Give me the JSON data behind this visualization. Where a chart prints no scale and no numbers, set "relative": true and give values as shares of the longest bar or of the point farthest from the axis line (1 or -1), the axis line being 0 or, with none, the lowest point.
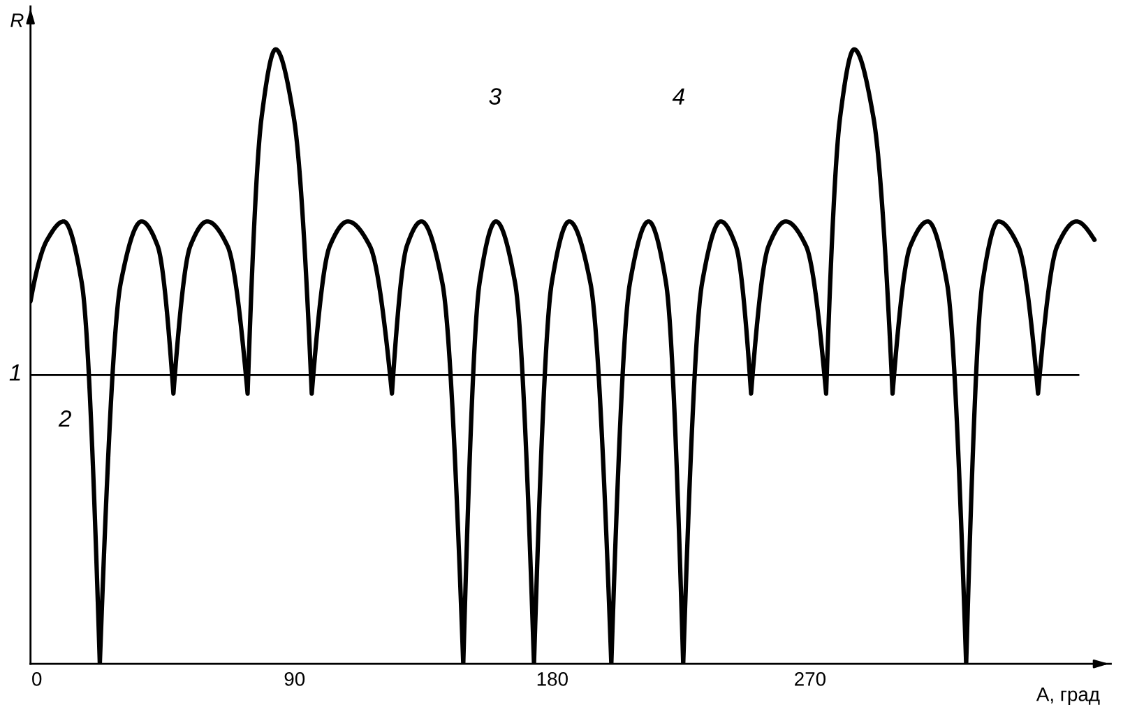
{
  "chart_data": {
    "type": "line",
    "relative": true,
    "xlabel": "A, град",
    "ylabel": "R",
    "xlim": [
      -2.2,
      375
    ],
    "xticks": [
      0,
      90,
      180,
      270
    ],
    "grid": false,
    "marker": "none",
    "line_style": "solid",
    "x": [
      -2.2,
      3.6,
      9.4,
      15.7,
      22.0,
      29.3,
      36.6,
      42.2,
      47.7,
      53.6,
      59.5,
      66.6,
      73.6,
      78.5,
      83.4,
      89.7,
      96.0,
      102.3,
      108.6,
      116.3,
      124.0,
      129.2,
      134.3,
      141.6,
      148.9,
      154.6,
      160.3,
      167.0,
      173.6,
      179.8,
      185.9,
      193.3,
      200.6,
      207.1,
      213.6,
      219.7,
      225.7,
      232.3,
      238.8,
      244.1,
      249.4,
      255.5,
      261.5,
      268.6,
      275.6,
      280.5,
      285.4,
      292.1,
      298.8,
      305.0,
      311.1,
      317.8,
      324.5,
      330.2,
      335.8,
      342.7,
      349.6,
      356.3,
      363.0,
      369.3
    ],
    "series": [
      {
        "color": "#000000",
        "values": [
          0.59,
          0.69,
          0.72,
          0.62,
          0,
          0.62,
          0.72,
          0.68,
          0.44,
          0.68,
          0.72,
          0.68,
          0.44,
          0.89,
          1.0,
          0.89,
          0.44,
          0.68,
          0.72,
          0.68,
          0.44,
          0.68,
          0.72,
          0.62,
          0,
          0.62,
          0.72,
          0.62,
          0,
          0.62,
          0.72,
          0.62,
          0,
          0.62,
          0.72,
          0.62,
          0,
          0.62,
          0.72,
          0.68,
          0.44,
          0.68,
          0.72,
          0.68,
          0.44,
          0.89,
          1.0,
          0.89,
          0.44,
          0.68,
          0.72,
          0.62,
          0,
          0.62,
          0.72,
          0.68,
          0.44,
          0.68,
          0.72,
          0.69
        ]
      }
    ],
    "ref_lines": [
      {
        "axis": "y",
        "value": 0.47,
        "color": "#000000"
      }
    ],
    "annotations": [
      "1",
      "2",
      "3",
      "4"
    ]
  }
}
